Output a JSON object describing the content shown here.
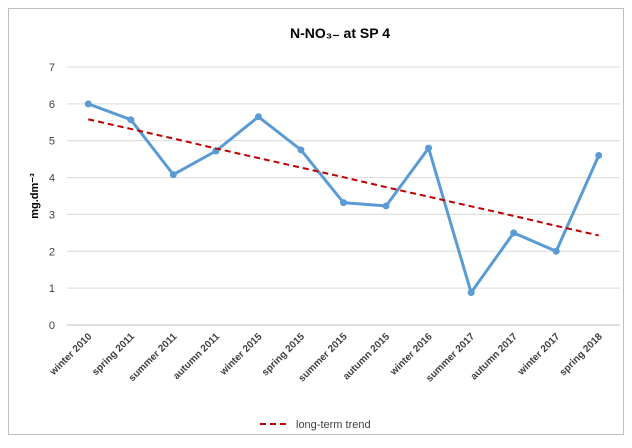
{
  "chart_data": {
    "type": "line",
    "title": "N-NO₃₋   at SP 4",
    "y_label": "mg.dm⁻³",
    "categories": [
      "winter 2010",
      "spring 2011",
      "summer 2011",
      "autumn 2011",
      "winter 2015",
      "spring 2015",
      "summer 2015",
      "autumn 2015",
      "winter 2016",
      "summer 2017",
      "autumn 2017",
      "winter 2017",
      "spring 2018"
    ],
    "series": [
      {
        "color": "#5b9bd5",
        "values": [
          6.0,
          5.57,
          4.08,
          4.72,
          5.65,
          4.75,
          3.32,
          3.23,
          4.8,
          0.88,
          2.5,
          2.0,
          4.6
        ]
      },
      {
        "name": "long-term trend",
        "color": "#c00000",
        "dashed": true,
        "values": [
          5.58,
          5.32,
          5.06,
          4.79,
          4.53,
          4.27,
          4.01,
          3.74,
          3.48,
          3.22,
          2.96,
          2.69,
          2.43
        ]
      }
    ],
    "ylim": [
      0,
      7
    ],
    "yticks": [
      0,
      1,
      2,
      3,
      4,
      5,
      6,
      7
    ],
    "grid": true,
    "legend": "bottom"
  }
}
